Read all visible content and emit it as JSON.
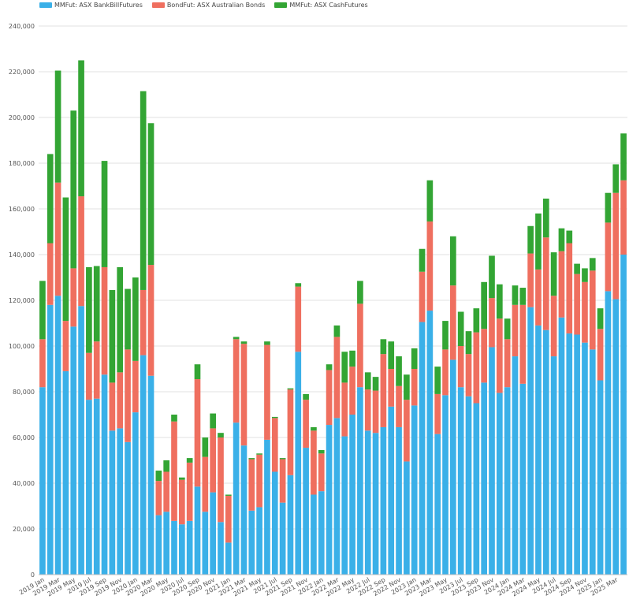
{
  "chart_data": {
    "type": "bar",
    "stacked": true,
    "title": "",
    "xlabel": "",
    "ylabel": "",
    "ylim": [
      0,
      240000
    ],
    "yticks": [
      "0",
      "20,000",
      "40,000",
      "60,000",
      "80,000",
      "100,000",
      "120,000",
      "140,000",
      "160,000",
      "180,000",
      "200,000",
      "220,000",
      "240,000"
    ],
    "grid": true,
    "legend_position": "top-left",
    "categories": [
      "2019 Jan",
      "2019 Feb",
      "2019 Mar",
      "2019 Apr",
      "2019 May",
      "2019 Jun",
      "2019 Jul",
      "2019 Aug",
      "2019 Sep",
      "2019 Oct",
      "2019 Nov",
      "2019 Dec",
      "2020 Jan",
      "2020 Feb",
      "2020 Mar",
      "2020 Apr",
      "2020 May",
      "2020 Jun",
      "2020 Jul",
      "2020 Aug",
      "2020 Sep",
      "2020 Oct",
      "2020 Nov",
      "2020 Dec",
      "2021 Jan",
      "2021 Feb",
      "2021 Mar",
      "2021 Apr",
      "2021 May",
      "2021 Jun",
      "2021 Jul",
      "2021 Aug",
      "2021 Sep",
      "2021 Oct",
      "2021 Nov",
      "2021 Dec",
      "2022 Jan",
      "2022 Feb",
      "2022 Mar",
      "2022 Apr",
      "2022 May",
      "2022 Jun",
      "2022 Jul",
      "2022 Aug",
      "2022 Sep",
      "2022 Oct",
      "2022 Nov",
      "2022 Dec",
      "2023 Jan",
      "2023 Feb",
      "2023 Mar",
      "2023 Apr",
      "2023 May",
      "2023 Jun",
      "2023 Jul",
      "2023 Aug",
      "2023 Sep",
      "2023 Oct",
      "2023 Nov",
      "2023 Dec",
      "2024 Jan",
      "2024 Feb",
      "2024 Mar",
      "2024 Apr",
      "2024 May",
      "2024 Jun",
      "2024 Jul",
      "2024 Aug",
      "2024 Sep",
      "2024 Oct",
      "2024 Nov",
      "2024 Dec",
      "2025 Jan",
      "2025 Feb",
      "2025 Mar",
      "2025 Apr"
    ],
    "visible_tick_labels": [
      "2019 Jan",
      "2019 Mar",
      "2019 May",
      "2019 Jul",
      "2019 Sep",
      "2019 Nov",
      "2020 Jan",
      "2020 Mar",
      "2020 May",
      "2020 Jul",
      "2020 Sep",
      "2020 Nov",
      "2021 Jan",
      "2021 Mar",
      "2021 May",
      "2021 Jul",
      "2021 Sep",
      "2021 Nov",
      "2022 Jan",
      "2022 Mar",
      "2022 May",
      "2022 Jul",
      "2022 Sep",
      "2022 Nov",
      "2023 Jan",
      "2023 Mar",
      "2023 May",
      "2023 Jul",
      "2023 Sep",
      "2023 Nov",
      "2024 Jan",
      "2024 Mar",
      "2024 May",
      "2024 Jul",
      "2024 Sep",
      "2024 Nov",
      "2025 Jan",
      "2025 Mar"
    ],
    "series": [
      {
        "name": "MMFut: ASX BankBillFutures",
        "color": "#3ab0e8",
        "values": [
          82000,
          118000,
          122000,
          89000,
          108500,
          117500,
          76500,
          77000,
          87500,
          63000,
          64000,
          58000,
          71000,
          96000,
          87000,
          26000,
          27500,
          23500,
          22000,
          23500,
          38500,
          27500,
          36000,
          23000,
          14000,
          66500,
          56500,
          28000,
          29500,
          59000,
          45000,
          31500,
          43500,
          97500,
          55500,
          35000,
          36500,
          65500,
          68500,
          60500,
          70000,
          82000,
          63000,
          62000,
          64500,
          73500,
          64500,
          49500,
          74000,
          110500,
          115500,
          61500,
          78500,
          94000,
          82000,
          78000,
          75000,
          84000,
          99500,
          79500,
          82000,
          95500,
          83500,
          117000,
          109000,
          107000,
          95500,
          112500,
          105500,
          105000,
          101500,
          98500,
          85000,
          124000,
          120500,
          140000
        ]
      },
      {
        "name": "BondFut: ASX Australian Bonds",
        "color": "#ef6f5f",
        "values": [
          21000,
          27000,
          49500,
          22000,
          25500,
          48000,
          20500,
          25000,
          47000,
          21000,
          24500,
          40500,
          22500,
          28500,
          48500,
          15000,
          17500,
          43500,
          19500,
          25500,
          47000,
          24000,
          28000,
          37000,
          20500,
          36500,
          44500,
          22500,
          23000,
          41500,
          23500,
          19000,
          37500,
          28500,
          21000,
          28000,
          16500,
          24000,
          35500,
          23500,
          21000,
          36500,
          18000,
          18500,
          32000,
          16500,
          18000,
          27000,
          16000,
          22000,
          39000,
          17500,
          20000,
          32500,
          18000,
          18500,
          31000,
          23500,
          21500,
          32500,
          21000,
          22500,
          34500,
          23500,
          24500,
          40500,
          26500,
          29000,
          39500,
          26500,
          26500,
          34500,
          22500,
          30000,
          46500,
          32500
        ]
      },
      {
        "name": "MMFut: ASX CashFutures",
        "color": "#33a534",
        "values": [
          25500,
          39000,
          49000,
          54000,
          69000,
          59500,
          37500,
          33000,
          46500,
          40500,
          46000,
          26500,
          36500,
          87000,
          62000,
          4500,
          5000,
          3000,
          1000,
          2000,
          6500,
          8500,
          6500,
          2000,
          500,
          1000,
          1000,
          500,
          500,
          1500,
          500,
          500,
          500,
          1500,
          2500,
          1500,
          1500,
          2500,
          5000,
          13500,
          7000,
          10000,
          7500,
          6000,
          6500,
          12000,
          13000,
          11000,
          9000,
          10000,
          18000,
          12000,
          12500,
          21500,
          15000,
          10000,
          10500,
          20500,
          18500,
          15000,
          9000,
          8500,
          7500,
          12000,
          24500,
          17000,
          19000,
          10000,
          5500,
          4500,
          6000,
          5500,
          9000,
          13000,
          12500,
          20500
        ]
      }
    ]
  }
}
